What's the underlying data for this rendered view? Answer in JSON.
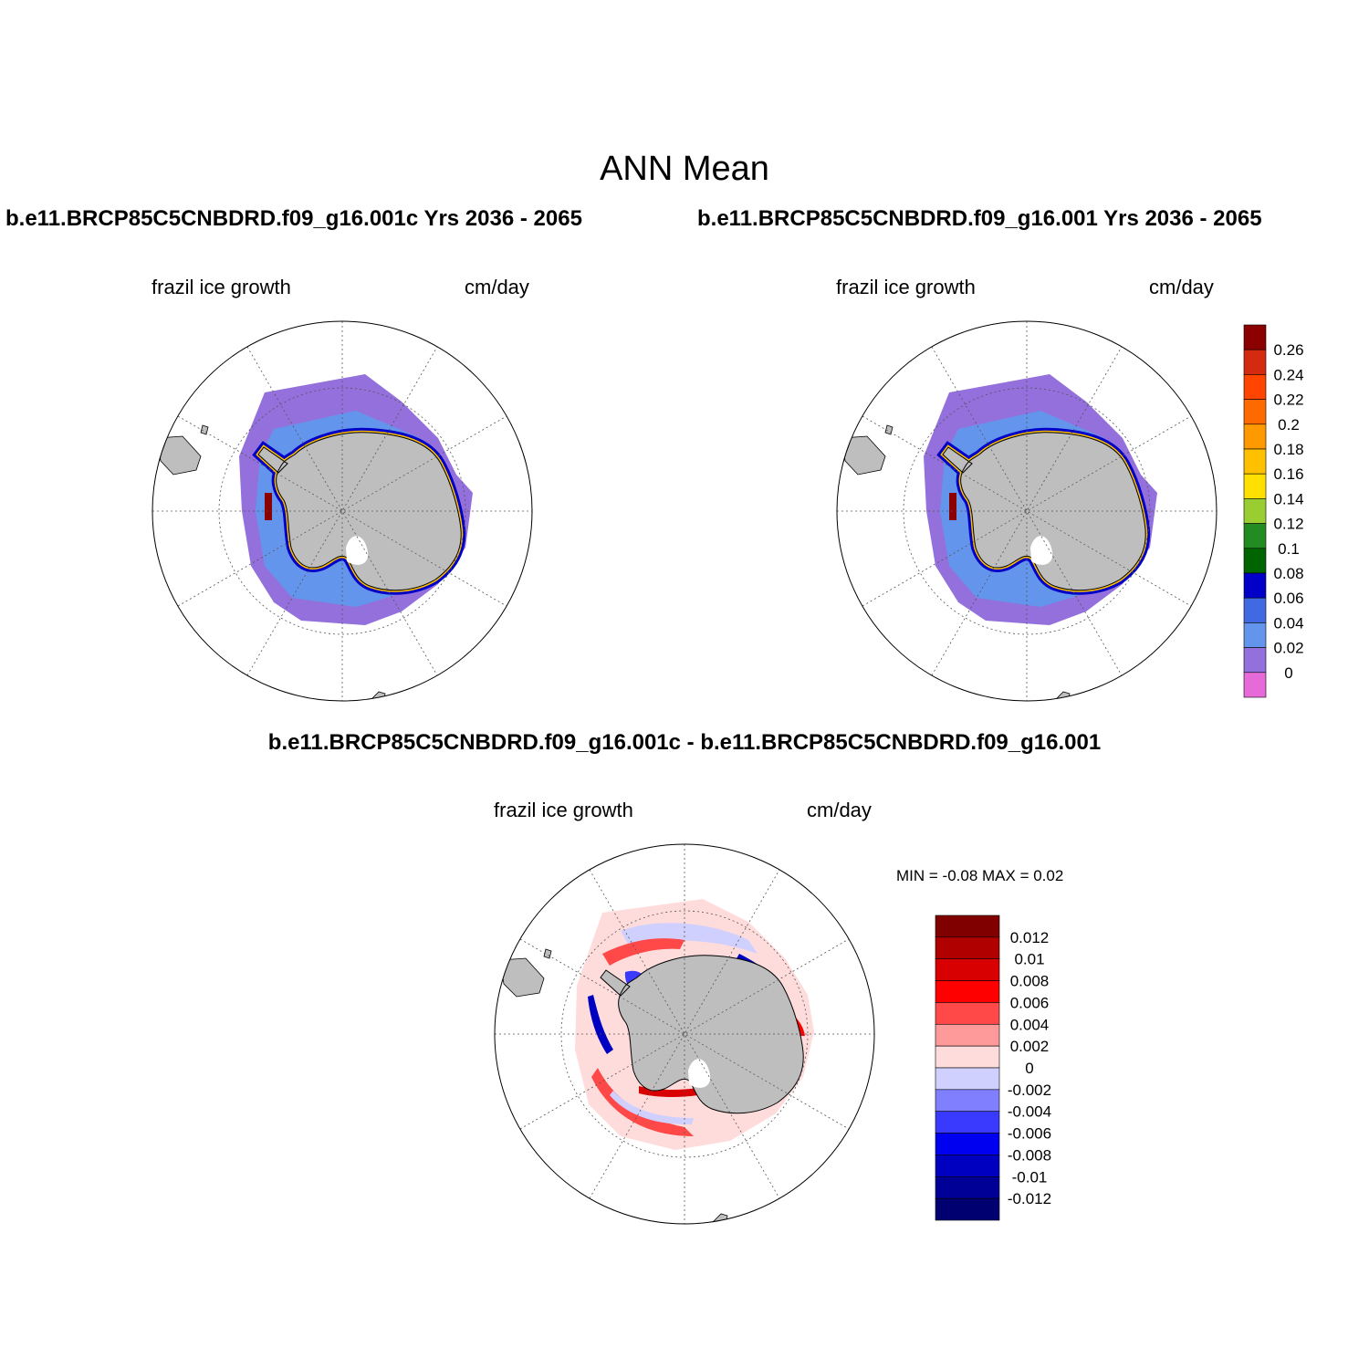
{
  "title": "ANN Mean",
  "panels": [
    {
      "case": "b.e11.BRCP85C5CNBDRD.f09_g16.001c  Yrs 2036 - 2065",
      "variable": "frazil ice growth",
      "units": "cm/day"
    },
    {
      "case": "b.e11.BRCP85C5CNBDRD.f09_g16.001  Yrs 2036 - 2065",
      "variable": "frazil ice growth",
      "units": "cm/day"
    }
  ],
  "difference": {
    "title": "b.e11.BRCP85C5CNBDRD.f09_g16.001c - b.e11.BRCP85C5CNBDRD.f09_g16.001",
    "variable": "frazil ice growth",
    "units": "cm/day",
    "minmax": "MIN =  -0.08 MAX =   0.02"
  },
  "colorbar_main": {
    "labels": [
      "0.26",
      "0.24",
      "0.22",
      "0.2",
      "0.18",
      "0.16",
      "0.14",
      "0.12",
      "0.1",
      "0.08",
      "0.06",
      "0.04",
      "0.02",
      "0"
    ],
    "colors": [
      "#8B0000",
      "#D42A10",
      "#FF4500",
      "#FF6A00",
      "#FF9900",
      "#FFC000",
      "#FFE000",
      "#9ACD32",
      "#228B22",
      "#006400",
      "#0000C8",
      "#4169E1",
      "#6495ED",
      "#9370DB",
      "#E66BD9"
    ]
  },
  "colorbar_diff": {
    "labels": [
      "0.012",
      "0.01",
      "0.008",
      "0.006",
      "0.004",
      "0.002",
      "0",
      "-0.002",
      "-0.004",
      "-0.006",
      "-0.008",
      "-0.01",
      "-0.012"
    ],
    "colors": [
      "#800000",
      "#B00000",
      "#D80000",
      "#FF0000",
      "#FF4848",
      "#FF9A9A",
      "#FFDCDC",
      "#D0D0FF",
      "#8080FF",
      "#3A3AFF",
      "#0000F0",
      "#0000C0",
      "#000096",
      "#000070"
    ]
  },
  "map_colors": {
    "land": "#BEBEBE",
    "outer_ice": "#9370DB",
    "mid_ice": "#6495ED",
    "coastal": "#0000C8"
  }
}
